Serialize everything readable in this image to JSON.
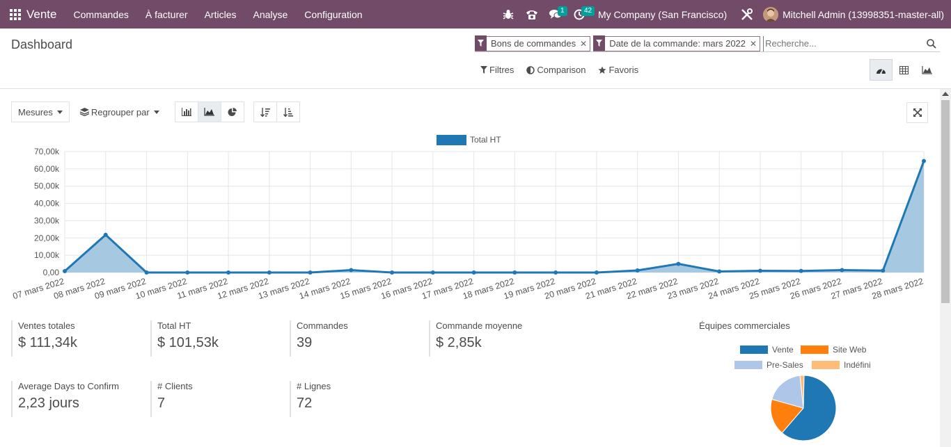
{
  "navbar": {
    "app_name": "Vente",
    "menu": [
      "Commandes",
      "À facturer",
      "Articles",
      "Analyse",
      "Configuration"
    ],
    "messages_count": "1",
    "activities_count": "42",
    "company": "My Company (San Francisco)",
    "user": "Mitchell Admin (13998351-master-all)"
  },
  "control_panel": {
    "title": "Dashboard",
    "facets": [
      "Bons de commandes",
      "Date de la commande: mars 2022"
    ],
    "search_placeholder": "Recherche...",
    "filters_label": "Filtres",
    "comparison_label": "Comparison",
    "favorites_label": "Favoris"
  },
  "graph_toolbar": {
    "measures_label": "Mesures",
    "groupby_label": "Regrouper par"
  },
  "chart_data": {
    "type": "area",
    "legend": [
      "Total HT"
    ],
    "color": "#1f77b4",
    "fill": "#a6c8e0",
    "x": [
      "07 mars 2022",
      "08 mars 2022",
      "09 mars 2022",
      "10 mars 2022",
      "11 mars 2022",
      "12 mars 2022",
      "13 mars 2022",
      "14 mars 2022",
      "15 mars 2022",
      "16 mars 2022",
      "17 mars 2022",
      "18 mars 2022",
      "19 mars 2022",
      "20 mars 2022",
      "21 mars 2022",
      "22 mars 2022",
      "23 mars 2022",
      "24 mars 2022",
      "25 mars 2022",
      "26 mars 2022",
      "27 mars 2022",
      "28 mars 2022"
    ],
    "series": [
      {
        "name": "Total HT",
        "values": [
          800,
          21800,
          0,
          0,
          0,
          0,
          0,
          1400,
          0,
          0,
          0,
          0,
          0,
          0,
          1200,
          5000,
          600,
          1000,
          900,
          1400,
          1100,
          64500
        ]
      }
    ],
    "yticks": [
      "0,00",
      "10,00k",
      "20,00k",
      "30,00k",
      "40,00k",
      "50,00k",
      "60,00k",
      "70,00k"
    ],
    "ylim": [
      0,
      70000
    ],
    "grid": true,
    "legend_position": "top-center"
  },
  "kpis": [
    {
      "label": "Ventes totales",
      "value": "$ 111,34k"
    },
    {
      "label": "Total HT",
      "value": "$ 101,53k"
    },
    {
      "label": "Commandes",
      "value": "39"
    },
    {
      "label": "Commande moyenne",
      "value": "$ 2,85k"
    },
    {
      "label": "Average Days to Confirm",
      "value": "2,23 jours"
    },
    {
      "label": "# Clients",
      "value": "7"
    },
    {
      "label": "# Lignes",
      "value": "72"
    }
  ],
  "teams": {
    "title": "Équipes commerciales",
    "legend": [
      {
        "name": "Vente",
        "color": "#1f77b4"
      },
      {
        "name": "Site Web",
        "color": "#ff7f0e"
      },
      {
        "name": "Pre-Sales",
        "color": "#aec7e8"
      },
      {
        "name": "Indéfini",
        "color": "#ffbb78"
      }
    ],
    "values": [
      61,
      18,
      19,
      2
    ]
  }
}
